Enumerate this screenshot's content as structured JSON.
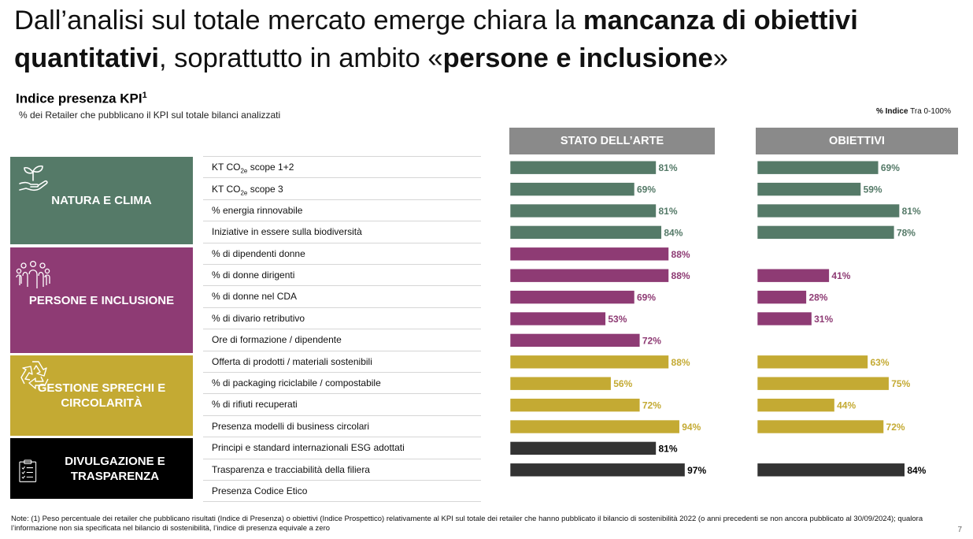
{
  "headline": {
    "part1": "Dall’analisi sul totale mercato emerge chiara la ",
    "bold1": "mancanza di obiettivi quantitativi",
    "part2": ", soprattutto in ambito «",
    "bold2": "persone e inclusione",
    "part3": "»"
  },
  "subtitle": {
    "text": "Indice presenza KPI",
    "sup": "1"
  },
  "subnote": "% dei Retailer che pubblicano il KPI sul totale bilanci analizzati",
  "legend_note": {
    "bold": "% Indice",
    "rest": "Tra 0-100%"
  },
  "columns": {
    "left": "STATO DELL’ARTE",
    "right": "OBIETTIVI"
  },
  "categories": [
    {
      "label": "NATURA E CLIMA",
      "icon": "hand-plant-icon",
      "color": "#557a68"
    },
    {
      "label": "PERSONE E INCLUSIONE",
      "icon": "people-group-icon",
      "color": "#8e3b74"
    },
    {
      "label": "GESTIONE SPRECHI E CIRCOLARITÀ",
      "icon": "recycle-icon",
      "color": "#c4aa33"
    },
    {
      "label": "DIVULGAZIONE E TRASPARENZA",
      "icon": "clipboard-checklist-icon",
      "color": "#000000"
    }
  ],
  "colors": {
    "natura": "#557a68",
    "persone": "#8e3b74",
    "gestione": "#c4aa33",
    "divulgazione": "#333333",
    "header_gray": "#8a8a8a"
  },
  "chart_data": {
    "type": "bar",
    "orientation": "horizontal",
    "xlim": [
      0,
      100
    ],
    "categories": [
      "KT CO2e scope 1+2",
      "KT CO2e scope 3",
      "% energia rinnovabile",
      "Iniziative in essere sulla biodiversità",
      "% di dipendenti donne",
      "% di donne dirigenti",
      "% di donne nel CDA",
      "% di divario retributivo",
      "Ore di formazione / dipendente",
      "Offerta di prodotti / materiali sostenibili",
      "% di packaging riciclabile / compostabile",
      "% di rifiuti recuperati",
      "Presenza modelli di business circolari",
      "Principi e standard internazionali ESG adottati",
      "Trasparenza e tracciabilità della filiera",
      "Presenza Codice Etico"
    ],
    "groups": [
      "natura",
      "natura",
      "natura",
      "natura",
      "persone",
      "persone",
      "persone",
      "persone",
      "persone",
      "gestione",
      "gestione",
      "gestione",
      "gestione",
      "divulgazione",
      "divulgazione",
      "divulgazione"
    ],
    "series": [
      {
        "name": "STATO DELL’ARTE",
        "values": [
          81,
          69,
          81,
          84,
          88,
          88,
          69,
          53,
          72,
          88,
          56,
          72,
          94,
          81,
          97,
          null
        ]
      },
      {
        "name": "OBIETTIVI",
        "values": [
          69,
          59,
          81,
          78,
          null,
          41,
          28,
          31,
          null,
          63,
          75,
          44,
          72,
          null,
          84,
          null
        ]
      }
    ],
    "value_suffix": "%"
  },
  "footnote": "Note: (1) Peso percentuale dei retailer che pubblicano risultati (Indice di Presenza) o obiettivi (Indice Prospettico) relativamente al KPI sul totale dei retailer che hanno pubblicato il bilancio di sostenibilità 2022 (o anni precedenti se non ancora pubblicato al 30/09/2024); qualora l’informazione non sia specificata nel bilancio di sostenibilità, l’indice di presenza equivale a zero",
  "page_number": "7"
}
